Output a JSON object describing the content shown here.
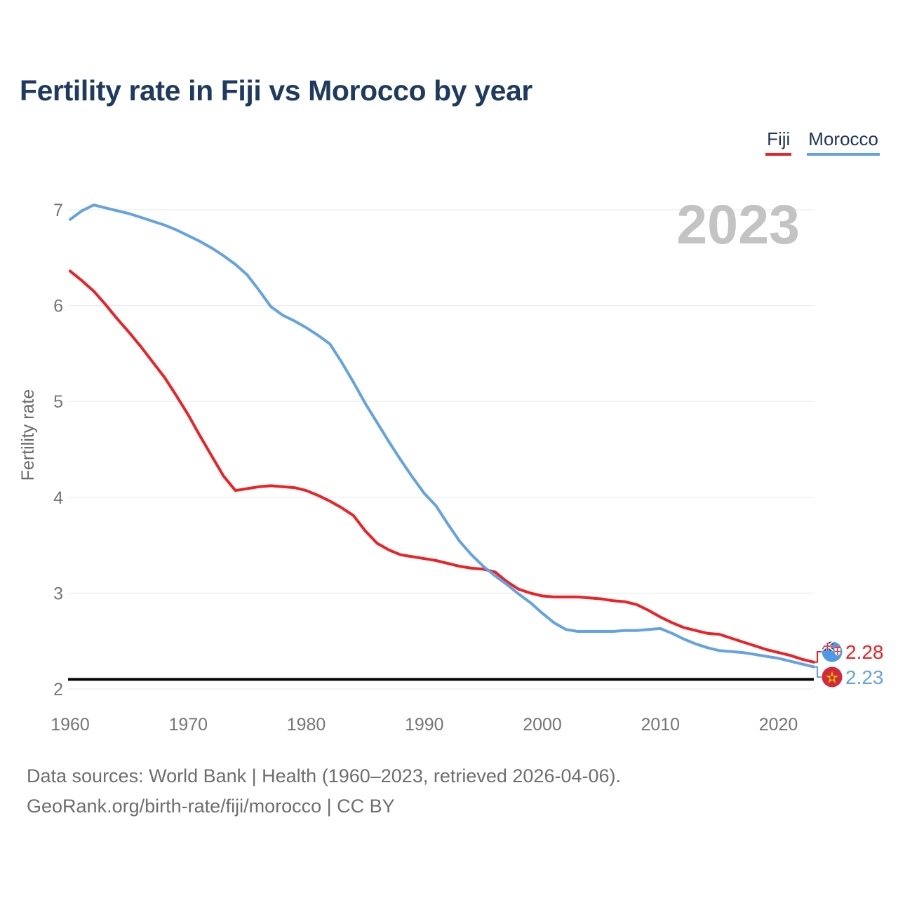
{
  "header": {
    "title": "Fertility rate in Fiji vs Morocco by year"
  },
  "legend": {
    "items": [
      {
        "label": "Fiji",
        "color": "#ec2227"
      },
      {
        "label": "Morocco",
        "color": "#64a3e1"
      }
    ]
  },
  "watermark": "2023",
  "y_axis": {
    "label": "Fertility rate",
    "ticks": [
      7,
      6,
      5,
      4,
      3,
      2
    ]
  },
  "x_axis": {
    "ticks": [
      1960,
      1970,
      1980,
      1990,
      2000,
      2010,
      2020
    ]
  },
  "reference_line": {
    "value": 2.1,
    "color": "#050505"
  },
  "end_labels": [
    {
      "series": "Fiji",
      "value": "2.28",
      "flag": "fiji-flag-icon"
    },
    {
      "series": "Morocco",
      "value": "2.23",
      "flag": "morocco-flag-icon"
    }
  ],
  "footer": {
    "line1": "Data sources: World Bank | Health (1960–2023, retrieved 2026-04-06).",
    "line2": "GeoRank.org/birth-rate/fiji/morocco | CC BY"
  },
  "chart_data": {
    "type": "line",
    "title": "Fertility rate in Fiji vs Morocco by year",
    "xlabel": "",
    "ylabel": "Fertility rate",
    "ylim": [
      2,
      7
    ],
    "xlim": [
      1960,
      2023
    ],
    "grid": true,
    "legend_position": "top-right",
    "x": [
      1960,
      1961,
      1962,
      1963,
      1964,
      1965,
      1966,
      1967,
      1968,
      1969,
      1970,
      1971,
      1972,
      1973,
      1974,
      1975,
      1976,
      1977,
      1978,
      1979,
      1980,
      1981,
      1982,
      1983,
      1984,
      1985,
      1986,
      1987,
      1988,
      1989,
      1990,
      1991,
      1992,
      1993,
      1994,
      1995,
      1996,
      1997,
      1998,
      1999,
      2000,
      2001,
      2002,
      2003,
      2004,
      2005,
      2006,
      2007,
      2008,
      2009,
      2010,
      2011,
      2012,
      2013,
      2014,
      2015,
      2016,
      2017,
      2018,
      2019,
      2020,
      2021,
      2022,
      2023
    ],
    "series": [
      {
        "name": "Fiji",
        "color": "#ec2227",
        "values": [
          6.36,
          6.26,
          6.15,
          6.01,
          5.86,
          5.72,
          5.57,
          5.41,
          5.25,
          5.06,
          4.86,
          4.64,
          4.43,
          4.22,
          4.07,
          4.09,
          4.11,
          4.12,
          4.11,
          4.1,
          4.07,
          4.02,
          3.96,
          3.89,
          3.81,
          3.65,
          3.52,
          3.45,
          3.4,
          3.38,
          3.36,
          3.34,
          3.31,
          3.28,
          3.26,
          3.25,
          3.22,
          3.12,
          3.04,
          3.0,
          2.97,
          2.96,
          2.96,
          2.96,
          2.95,
          2.94,
          2.92,
          2.91,
          2.88,
          2.82,
          2.75,
          2.69,
          2.64,
          2.61,
          2.58,
          2.57,
          2.53,
          2.49,
          2.45,
          2.41,
          2.38,
          2.35,
          2.31,
          2.28
        ]
      },
      {
        "name": "Morocco",
        "color": "#64a3e1",
        "values": [
          6.9,
          6.99,
          7.05,
          7.02,
          6.99,
          6.96,
          6.92,
          6.88,
          6.84,
          6.79,
          6.73,
          6.67,
          6.6,
          6.52,
          6.43,
          6.32,
          6.16,
          5.99,
          5.9,
          5.84,
          5.77,
          5.69,
          5.6,
          5.41,
          5.2,
          4.98,
          4.78,
          4.58,
          4.39,
          4.21,
          4.04,
          3.91,
          3.72,
          3.54,
          3.4,
          3.28,
          3.18,
          3.09,
          2.99,
          2.9,
          2.79,
          2.69,
          2.62,
          2.6,
          2.6,
          2.6,
          2.6,
          2.61,
          2.61,
          2.62,
          2.63,
          2.58,
          2.52,
          2.47,
          2.43,
          2.4,
          2.39,
          2.38,
          2.36,
          2.34,
          2.32,
          2.29,
          2.26,
          2.23
        ]
      }
    ]
  }
}
